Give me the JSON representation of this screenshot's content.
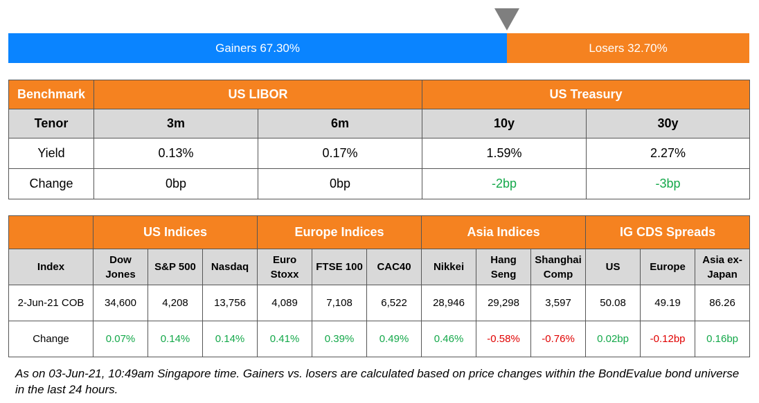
{
  "gainers_losers": {
    "gainers_label": "Gainers 67.30%",
    "losers_label": "Losers 32.70%",
    "gainers_pct": 67.3,
    "losers_pct": 32.7,
    "gainers_color": "#0a84ff",
    "losers_color": "#f58220",
    "marker_color": "#7f7f7f"
  },
  "rates": {
    "benchmark_label": "Benchmark",
    "group1": "US LIBOR",
    "group2": "US Treasury",
    "tenor_label": "Tenor",
    "tenors": [
      "3m",
      "6m",
      "10y",
      "30y"
    ],
    "yield_label": "Yield",
    "yields": [
      "0.13%",
      "0.17%",
      "1.59%",
      "2.27%"
    ],
    "change_label": "Change",
    "changes": [
      "0bp",
      "0bp",
      "-2bp",
      "-3bp"
    ]
  },
  "indices": {
    "groups": [
      "US Indices",
      "Europe Indices",
      "Asia Indices",
      "IG CDS Spreads"
    ],
    "index_label": "Index",
    "columns": [
      [
        "Dow",
        "Jones"
      ],
      [
        "S&P 500"
      ],
      [
        "Nasdaq"
      ],
      [
        "Euro",
        "Stoxx"
      ],
      [
        "FTSE 100"
      ],
      [
        "CAC40"
      ],
      [
        "Nikkei"
      ],
      [
        "Hang",
        "Seng"
      ],
      [
        "Shanghai",
        "Comp"
      ],
      [
        "US"
      ],
      [
        "Europe"
      ],
      [
        "Asia ex-",
        "Japan"
      ]
    ],
    "date_label": "2-Jun-21 COB",
    "values": [
      "34,600",
      "4,208",
      "13,756",
      "4,089",
      "7,108",
      "6,522",
      "28,946",
      "29,298",
      "3,597",
      "50.08",
      "49.19",
      "86.26"
    ],
    "change_label": "Change",
    "changes": [
      "0.07%",
      "0.14%",
      "0.14%",
      "0.41%",
      "0.39%",
      "0.49%",
      "0.46%",
      "-0.58%",
      "-0.76%",
      "0.02bp",
      "-0.12bp",
      "0.16bp"
    ]
  },
  "footnote": "As on 03-Jun-21, 10:49am Singapore time. Gainers vs. losers are calculated based on price changes within the BondEvalue bond universe in the last 24 hours.",
  "colors": {
    "header_bg": "#f58220",
    "subheader_bg": "#d9d9d9",
    "positive": "#14a84a",
    "negative": "#e00000"
  }
}
